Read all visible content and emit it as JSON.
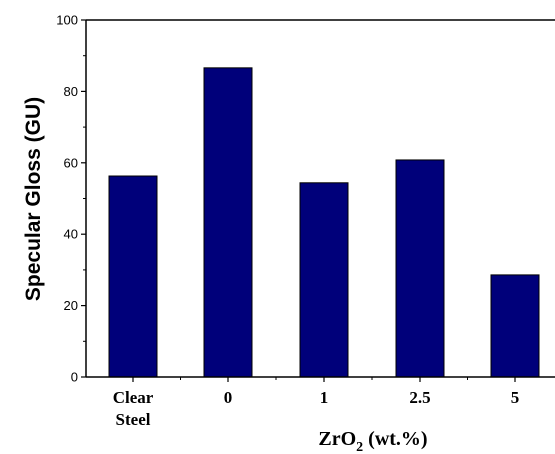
{
  "chart_data": {
    "type": "bar",
    "categories": [
      "Clear Steel",
      "0",
      "1",
      "2.5",
      "5"
    ],
    "category_lines": [
      [
        "Clear",
        "Steel"
      ],
      [
        "0"
      ],
      [
        "1"
      ],
      [
        "2.5"
      ],
      [
        "5"
      ]
    ],
    "values": [
      56.3,
      86.6,
      54.4,
      60.8,
      28.6
    ],
    "xlabel": {
      "base": "ZrO",
      "subscript": "2",
      "suffix": " (wt.%)"
    },
    "ylabel": "Specular Gloss (GU)",
    "ylim": [
      0,
      100
    ],
    "yticks": [
      0,
      20,
      40,
      60,
      80,
      100
    ],
    "bar_color": "#00007a",
    "axis_color": "#000000",
    "grid": false,
    "legend": "none"
  }
}
